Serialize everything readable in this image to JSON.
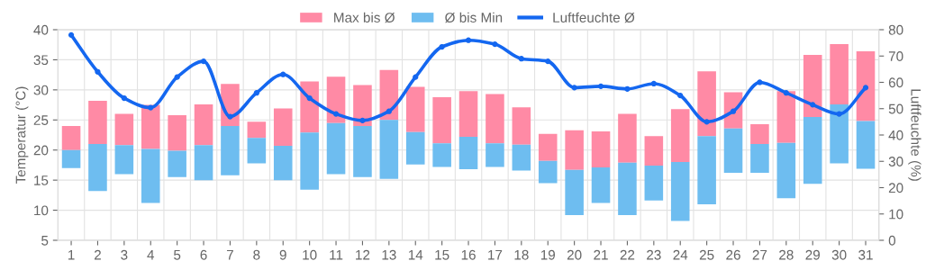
{
  "chart_data": {
    "type": "bar",
    "ylabel": "Temperatur (°C)",
    "y2label": "Luftfeuchte (%)",
    "categories": [
      "1",
      "2",
      "3",
      "4",
      "5",
      "6",
      "7",
      "8",
      "9",
      "10",
      "11",
      "12",
      "13",
      "14",
      "15",
      "16",
      "17",
      "18",
      "19",
      "20",
      "21",
      "22",
      "23",
      "24",
      "25",
      "26",
      "27",
      "28",
      "29",
      "30",
      "31"
    ],
    "series": [
      {
        "name": "Max bis Ø",
        "color": "#ff8aa5",
        "base": [
          20,
          21,
          20.8,
          20.2,
          19.9,
          20.8,
          24,
          22,
          20.7,
          22.9,
          24.5,
          24,
          25,
          23,
          21.1,
          22.2,
          21.1,
          20.9,
          18.2,
          16.7,
          17.1,
          17.9,
          17.4,
          18,
          22.3,
          23.6,
          21,
          21.2,
          25.5,
          27.6,
          24.8
        ],
        "values": [
          4,
          7.2,
          5.2,
          7.3,
          5.9,
          6.8,
          7,
          2.7,
          6.2,
          8.5,
          7.7,
          6.8,
          8.3,
          7.5,
          7.7,
          7.6,
          8.2,
          6.2,
          4.5,
          6.6,
          6,
          8.1,
          4.9,
          8.8,
          10.8,
          6,
          3.3,
          8.6,
          10.3,
          10,
          11.6
        ]
      },
      {
        "name": "Ø bis Min",
        "color": "#6ebdf0",
        "base": [
          17,
          13.2,
          16,
          11.2,
          15.5,
          15,
          15.8,
          17.8,
          15,
          13.4,
          16,
          15.5,
          15.2,
          17.6,
          17.2,
          16.8,
          17.2,
          16.6,
          14.5,
          9.2,
          11.2,
          9.2,
          11.6,
          8.2,
          11,
          16.2,
          16.2,
          12,
          14.4,
          17.8,
          16.9
        ],
        "values": [
          3,
          7.8,
          4.8,
          9,
          4.4,
          5.8,
          8.2,
          4.2,
          5.7,
          9.5,
          8.5,
          8.5,
          9.8,
          5.4,
          3.9,
          5.4,
          3.9,
          4.3,
          3.7,
          7.5,
          5.9,
          8.7,
          5.8,
          9.8,
          11.3,
          7.4,
          4.8,
          9.2,
          11.1,
          9.8,
          7.9
        ]
      },
      {
        "name": "Luftfeuchte Ø",
        "type": "line",
        "axis": "y2",
        "color": "#1467f0",
        "marker": "circle",
        "line_style": "solid",
        "values": [
          78,
          64,
          54,
          50.4,
          62,
          68,
          47,
          56,
          63,
          54,
          48,
          45.5,
          49,
          62,
          73.5,
          76,
          74.5,
          69,
          68,
          58,
          58.5,
          57.5,
          59.5,
          55,
          45,
          49,
          60,
          56,
          51.5,
          48,
          58
        ]
      }
    ],
    "ylim": [
      5,
      40
    ],
    "yticks": [
      5,
      10,
      15,
      20,
      25,
      30,
      35,
      40
    ],
    "y2lim": [
      0,
      80
    ],
    "y2ticks": [
      0,
      10,
      20,
      30,
      40,
      50,
      60,
      70,
      80
    ],
    "grid": true,
    "legend": "top"
  }
}
